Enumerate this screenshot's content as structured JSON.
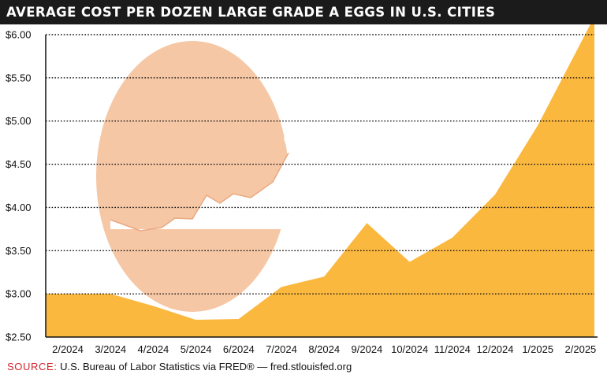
{
  "title": "AVERAGE COST PER DOZEN LARGE GRADE A EGGS IN U.S. CITIES",
  "source": {
    "label": "SOURCE:",
    "text": "U.S. Bureau of Labor Statistics via FRED® — fred.stlouisfed.org"
  },
  "colors": {
    "area_fill": "#fbb83f",
    "egg_fill": "#f5c4a0",
    "title_bg": "#1b1b1b",
    "source_label": "#d2232a",
    "grid": "#111111"
  },
  "illustration": "egg-icon",
  "chart_data": {
    "type": "area",
    "title": "AVERAGE COST PER DOZEN LARGE GRADE A EGGS IN U.S. CITIES",
    "xlabel": "",
    "ylabel": "",
    "x": [
      "2/2024",
      "3/2024",
      "4/2024",
      "5/2024",
      "6/2024",
      "7/2024",
      "8/2024",
      "9/2024",
      "10/2024",
      "11/2024",
      "12/2024",
      "1/2025",
      "2/2025"
    ],
    "values": [
      3.0,
      3.0,
      2.86,
      2.7,
      2.71,
      3.08,
      3.2,
      3.82,
      3.37,
      3.65,
      4.15,
      4.95,
      5.9
    ],
    "x_axis_extends_past_last_tick": true,
    "yticks": [
      "$2.50",
      "$3.00",
      "$3.50",
      "$4.00",
      "$4.50",
      "$5.00",
      "$5.50",
      "$6.00"
    ],
    "ylim": [
      2.5,
      6.0
    ],
    "grid": "horizontal dotted",
    "legend": "none"
  }
}
